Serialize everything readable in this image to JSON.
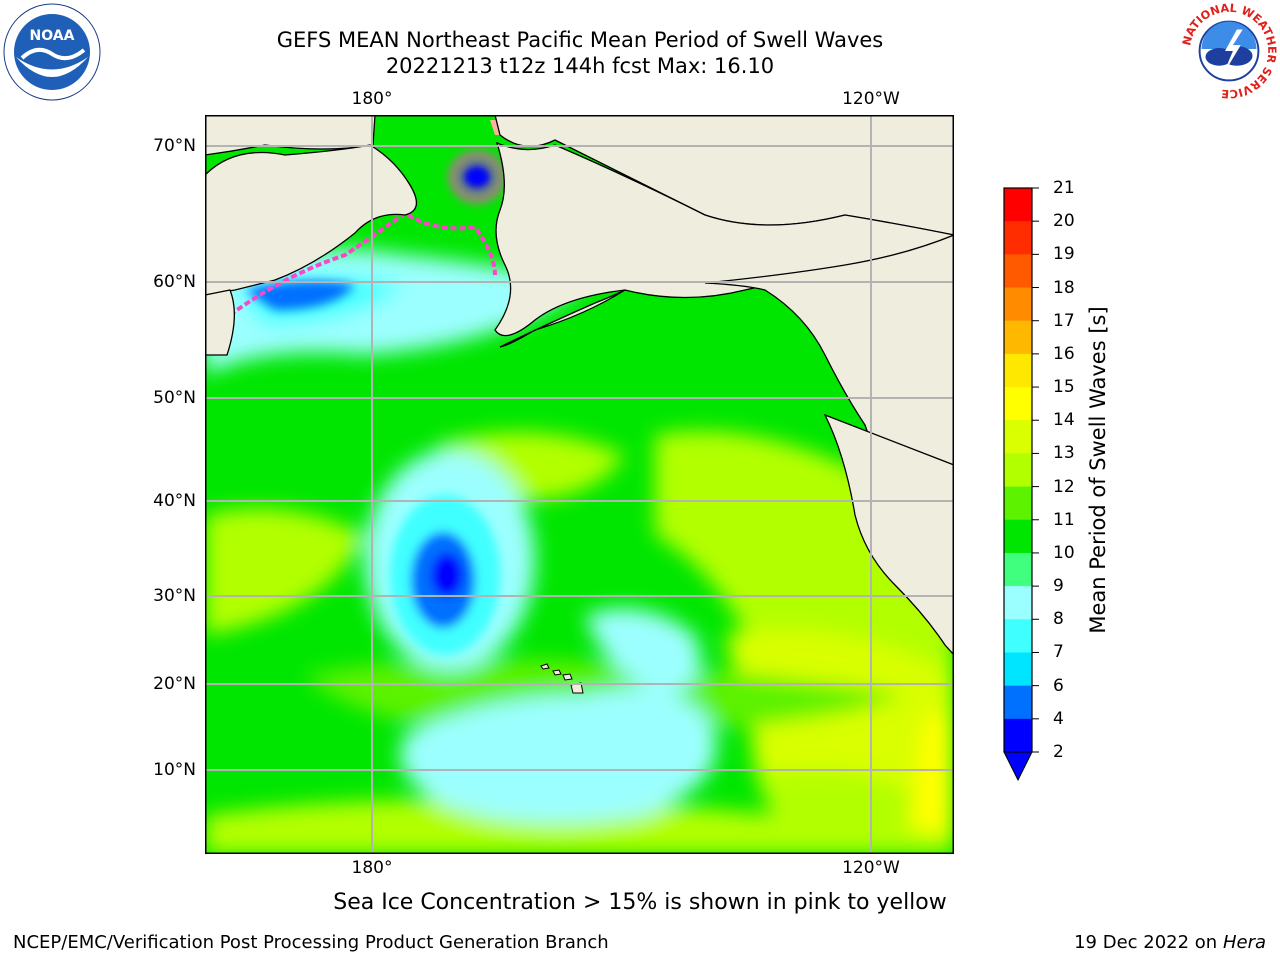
{
  "header": {
    "title": "GEFS MEAN Northeast Pacific Mean Period of Swell Waves",
    "subtitle": "20221213 t12z 144h fcst   Max: 16.10"
  },
  "map": {
    "lat_labels": [
      "70°N",
      "60°N",
      "50°N",
      "40°N",
      "30°N",
      "20°N",
      "10°N"
    ],
    "lon_labels": [
      "180°",
      "120°W"
    ],
    "land_color": "#efedde",
    "gridline_color": "#b3b3b3"
  },
  "colorbar": {
    "title": "Mean Period of Swell Waves [s]",
    "ticks": [
      "2",
      "4",
      "6",
      "7",
      "8",
      "9",
      "10",
      "11",
      "12",
      "13",
      "14",
      "15",
      "16",
      "17",
      "18",
      "19",
      "20",
      "21"
    ],
    "colors": [
      "#0000ff",
      "#0070ff",
      "#00e5ff",
      "#40ffff",
      "#9cffff",
      "#40ff7f",
      "#00e600",
      "#5cf200",
      "#b2ff00",
      "#d9ff00",
      "#ffff00",
      "#ffe800",
      "#ffb800",
      "#ff8c00",
      "#ff5a00",
      "#ff2d00",
      "#ff0000"
    ]
  },
  "notes": {
    "ice": "Sea Ice Concentration > 15% is shown in pink to yellow"
  },
  "footer": {
    "left": "NCEP/EMC/Verification Post Processing Product Generation Branch",
    "date": "19 Dec 2022 on",
    "machine": "Hera"
  },
  "logos": {
    "noaa_text": "NOAA",
    "nws_text": "NATIONAL WEATHER SERVICE"
  }
}
